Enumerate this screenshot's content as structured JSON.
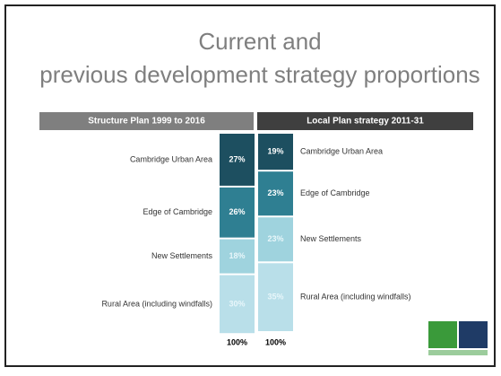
{
  "chart_data": {
    "type": "stacked_bar",
    "title": "Current and previous development strategy proportions",
    "categories": [
      "Structure Plan 1999 to 2016",
      "Local Plan strategy 2011-31"
    ],
    "series": [
      {
        "name": "Cambridge Urban Area",
        "color": "#1d4f60",
        "values": [
          27,
          19
        ],
        "value_labels": [
          "27%",
          "19%"
        ]
      },
      {
        "name": "Edge of Cambridge",
        "color": "#2f7f92",
        "values": [
          26,
          23
        ],
        "value_labels": [
          "26%",
          "23%"
        ]
      },
      {
        "name": "New Settlements",
        "color": "#9fd3de",
        "values": [
          18,
          23
        ],
        "value_labels": [
          "18%",
          "23%"
        ]
      },
      {
        "name": "Rural Area (including windfalls)",
        "color": "#b9dfe9",
        "values": [
          30,
          35
        ],
        "value_labels": [
          "30%",
          "35%"
        ]
      }
    ],
    "total_labels": [
      "100%",
      "100%"
    ]
  }
}
